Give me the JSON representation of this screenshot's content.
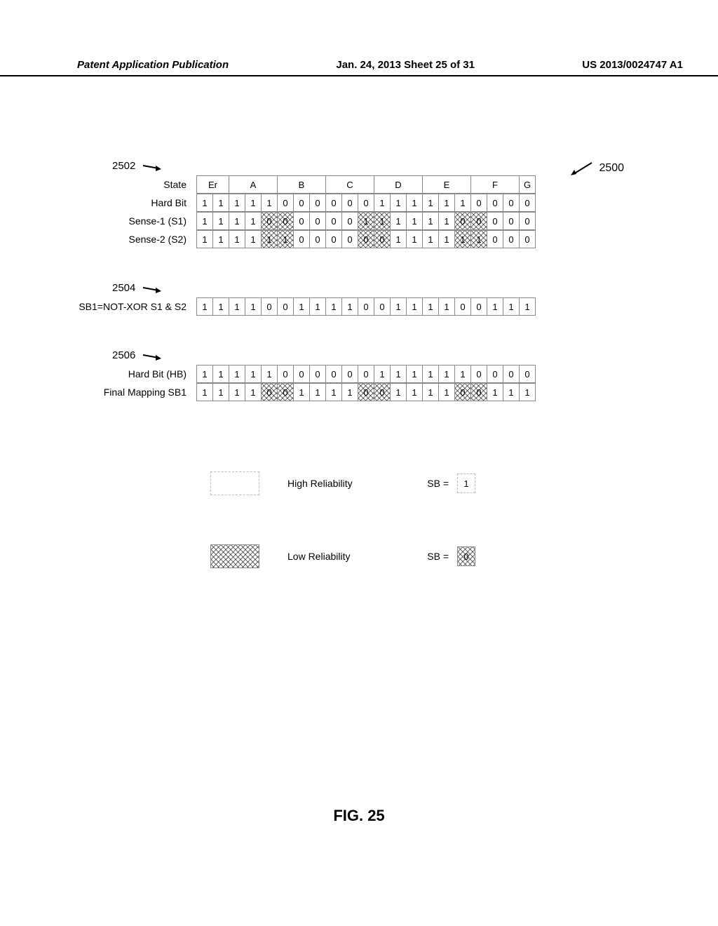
{
  "header": {
    "left": "Patent Application Publication",
    "center": "Jan. 24, 2013  Sheet 25 of 31",
    "right": "US 2013/0024747 A1"
  },
  "fig25_arrow_label": "2500",
  "section2502": {
    "ref": "2502",
    "stateLabel": "State",
    "states": [
      {
        "label": "Er",
        "span": 2
      },
      {
        "label": "A",
        "span": 3
      },
      {
        "label": "B",
        "span": 3
      },
      {
        "label": "C",
        "span": 3
      },
      {
        "label": "D",
        "span": 3
      },
      {
        "label": "E",
        "span": 3
      },
      {
        "label": "F",
        "span": 3
      },
      {
        "label": "G",
        "span": 1
      }
    ],
    "rows": [
      {
        "label": "Hard Bit",
        "vals": [
          "1",
          "1",
          "1",
          "1",
          "1",
          "0",
          "0",
          "0",
          "0",
          "0",
          "0",
          "1",
          "1",
          "1",
          "1",
          "1",
          "1",
          "0",
          "0",
          "0",
          "0"
        ],
        "hatch": []
      },
      {
        "label": "Sense-1 (S1)",
        "vals": [
          "1",
          "1",
          "1",
          "1",
          "0",
          "0",
          "0",
          "0",
          "0",
          "0",
          "1",
          "1",
          "1",
          "1",
          "1",
          "1",
          "0",
          "0",
          "0",
          "0",
          "0"
        ],
        "hatch": [
          4,
          5,
          10,
          11,
          16,
          17
        ]
      },
      {
        "label": "Sense-2 (S2)",
        "vals": [
          "1",
          "1",
          "1",
          "1",
          "1",
          "1",
          "0",
          "0",
          "0",
          "0",
          "0",
          "0",
          "1",
          "1",
          "1",
          "1",
          "1",
          "1",
          "0",
          "0",
          "0"
        ],
        "hatch": [
          4,
          5,
          10,
          11,
          16,
          17
        ]
      }
    ]
  },
  "section2504": {
    "ref": "2504",
    "rows": [
      {
        "label": "SB1=NOT-XOR S1 & S2",
        "vals": [
          "1",
          "1",
          "1",
          "1",
          "0",
          "0",
          "1",
          "1",
          "1",
          "1",
          "0",
          "0",
          "1",
          "1",
          "1",
          "1",
          "0",
          "0",
          "1",
          "1",
          "1"
        ],
        "hatch": []
      }
    ]
  },
  "section2506": {
    "ref": "2506",
    "rows": [
      {
        "label": "Hard Bit (HB)",
        "vals": [
          "1",
          "1",
          "1",
          "1",
          "1",
          "0",
          "0",
          "0",
          "0",
          "0",
          "0",
          "1",
          "1",
          "1",
          "1",
          "1",
          "1",
          "0",
          "0",
          "0",
          "0"
        ],
        "hatch": []
      },
      {
        "label": "Final Mapping SB1",
        "vals": [
          "1",
          "1",
          "1",
          "1",
          "0",
          "0",
          "1",
          "1",
          "1",
          "1",
          "0",
          "0",
          "1",
          "1",
          "1",
          "1",
          "0",
          "0",
          "1",
          "1",
          "1"
        ],
        "hatch": [
          4,
          5,
          10,
          11,
          16,
          17
        ]
      }
    ]
  },
  "legend": {
    "high": {
      "text": "High Reliability",
      "sb": "SB =",
      "val": "1"
    },
    "low": {
      "text": "Low Reliability",
      "sb": "SB =",
      "val": "0"
    }
  },
  "figcaption": "FIG. 25",
  "cellWidthPx": 24
}
